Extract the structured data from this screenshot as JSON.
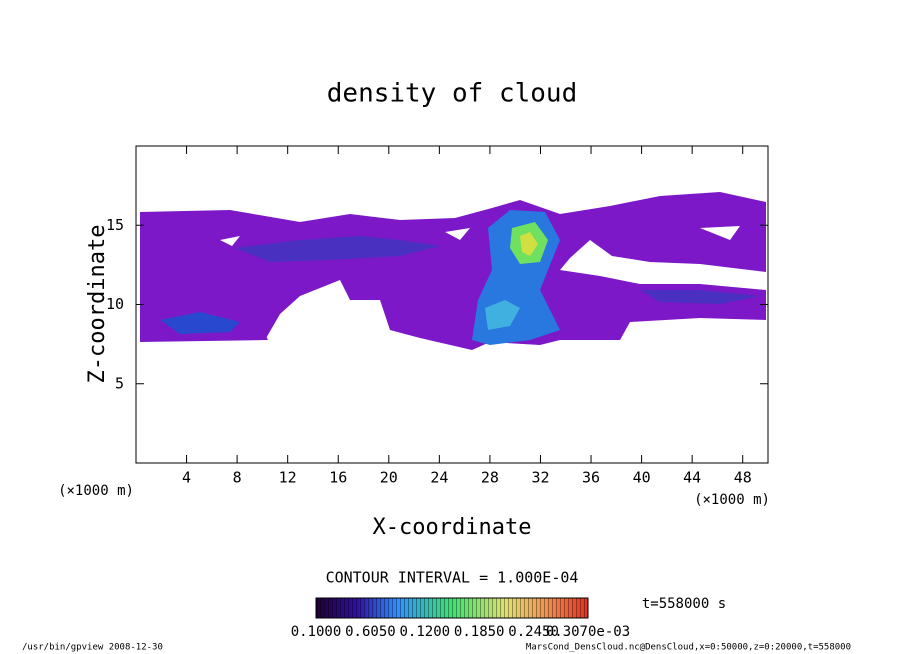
{
  "chart_data": {
    "type": "contour",
    "title": "density of cloud",
    "x_label": "X-coordinate",
    "y_label": "Z-coordinate",
    "x_unit": "(×1000 m)",
    "y_unit": "(×1000 m)",
    "xlim": [
      0,
      50
    ],
    "xticks": [
      4,
      8,
      12,
      16,
      20,
      24,
      28,
      32,
      36,
      40,
      44,
      48
    ],
    "ylim": [
      0,
      20
    ],
    "yticks": [
      5,
      10,
      15
    ],
    "contour_interval": "CONTOUR INTERVAL = 1.000E-04",
    "time": "t=558000 s",
    "colorbar_labels": [
      "0.1000",
      "0.6050",
      "0.1200",
      "0.1850",
      "0.2450",
      "0.3070e-03"
    ],
    "footer_left": "/usr/bin/gpview  2008-12-30",
    "footer_right": "MarsCond_DensCloud.nc@DensCloud,x=0:50000,z=0:20000,t=558000"
  }
}
